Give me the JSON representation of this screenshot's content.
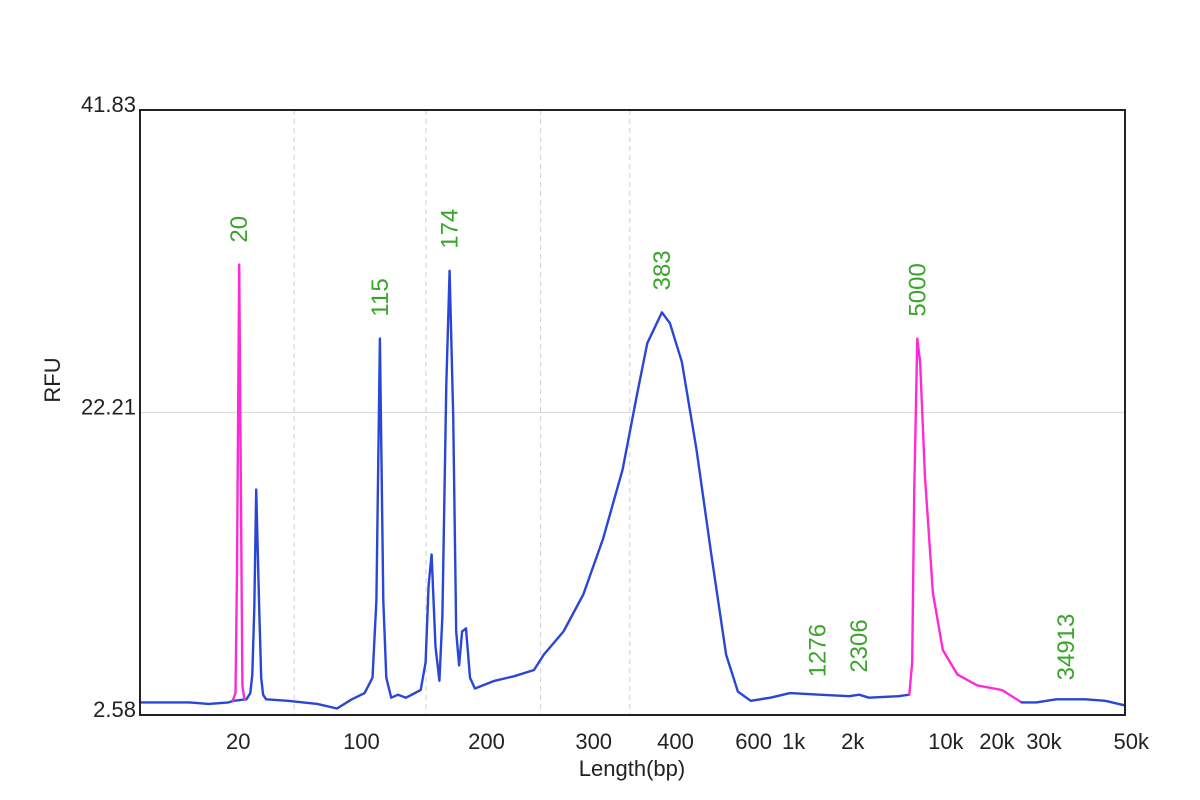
{
  "chart_data": {
    "type": "line",
    "title": "",
    "xlabel": "Length(bp)",
    "ylabel": "RFU",
    "ylim": [
      2.58,
      41.83
    ],
    "yticks": [
      "41.83",
      "22.21",
      "2.58"
    ],
    "x_scale": "piecewise sizing ladder",
    "x_ticks": [
      {
        "label": "20",
        "position": 0.0997
      },
      {
        "label": "100",
        "position": 0.2248
      },
      {
        "label": "200",
        "position": 0.3518
      },
      {
        "label": "300",
        "position": 0.4606
      },
      {
        "label": "400",
        "position": 0.5437
      },
      {
        "label": "600",
        "position": 0.623
      },
      {
        "label": "1k",
        "position": 0.6636
      },
      {
        "label": "2k",
        "position": 0.7236
      },
      {
        "label": "10k",
        "position": 0.8181
      },
      {
        "label": "20k",
        "position": 0.87
      },
      {
        "label": "30k",
        "position": 0.9177
      },
      {
        "label": "50k",
        "position": 1.0
      }
    ],
    "x_gridlines": [
      0.1566,
      0.2904,
      0.4067,
      0.4972
    ],
    "y_gridlines": [
      22.21
    ],
    "peaks": [
      {
        "label": "20",
        "position": 0.1007,
        "rfu": 31.8,
        "marker": true
      },
      {
        "label": "115",
        "position": 0.2436,
        "rfu": 27.0
      },
      {
        "label": "174",
        "position": 0.3143,
        "rfu": 31.4
      },
      {
        "label": "383",
        "position": 0.5298,
        "rfu": 28.7
      },
      {
        "label": "1276",
        "position": 0.688,
        "rfu": 3.6
      },
      {
        "label": "2306",
        "position": 0.7302,
        "rfu": 3.9
      },
      {
        "label": "5000",
        "position": 0.7891,
        "rfu": 27.0,
        "marker": true
      },
      {
        "label": "34913",
        "position": 0.9401,
        "rfu": 3.4
      }
    ],
    "series": [
      {
        "name": "sample",
        "color": "#2a46d6",
        "points": [
          [
            0.0,
            3.4
          ],
          [
            0.05,
            3.4
          ],
          [
            0.07,
            3.3
          ],
          [
            0.09,
            3.4
          ],
          [
            0.095,
            3.5
          ],
          [
            0.108,
            3.6
          ],
          [
            0.112,
            4.0
          ],
          [
            0.114,
            5.2
          ],
          [
            0.116,
            9.5
          ],
          [
            0.118,
            17.2
          ],
          [
            0.121,
            9.5
          ],
          [
            0.123,
            5.0
          ],
          [
            0.125,
            3.9
          ],
          [
            0.128,
            3.6
          ],
          [
            0.15,
            3.5
          ],
          [
            0.18,
            3.3
          ],
          [
            0.2,
            3.0
          ],
          [
            0.215,
            3.6
          ],
          [
            0.228,
            4.0
          ],
          [
            0.236,
            5.0
          ],
          [
            0.24,
            10.0
          ],
          [
            0.2436,
            27.0
          ],
          [
            0.247,
            10.0
          ],
          [
            0.25,
            5.0
          ],
          [
            0.255,
            3.7
          ],
          [
            0.262,
            3.9
          ],
          [
            0.27,
            3.7
          ],
          [
            0.285,
            4.2
          ],
          [
            0.29,
            6.0
          ],
          [
            0.293,
            11.0
          ],
          [
            0.296,
            13.0
          ],
          [
            0.3,
            7.0
          ],
          [
            0.304,
            4.8
          ],
          [
            0.307,
            9.0
          ],
          [
            0.311,
            24.0
          ],
          [
            0.3143,
            31.4
          ],
          [
            0.318,
            22.0
          ],
          [
            0.321,
            8.0
          ],
          [
            0.324,
            5.8
          ],
          [
            0.327,
            8.0
          ],
          [
            0.331,
            8.2
          ],
          [
            0.335,
            5.0
          ],
          [
            0.34,
            4.3
          ],
          [
            0.36,
            4.8
          ],
          [
            0.38,
            5.1
          ],
          [
            0.4,
            5.5
          ],
          [
            0.41,
            6.5
          ],
          [
            0.43,
            8.0
          ],
          [
            0.45,
            10.4
          ],
          [
            0.47,
            14.0
          ],
          [
            0.49,
            18.5
          ],
          [
            0.505,
            23.5
          ],
          [
            0.515,
            26.7
          ],
          [
            0.5298,
            28.7
          ],
          [
            0.538,
            28.0
          ],
          [
            0.55,
            25.5
          ],
          [
            0.565,
            19.8
          ],
          [
            0.58,
            13.0
          ],
          [
            0.595,
            6.5
          ],
          [
            0.607,
            4.1
          ],
          [
            0.62,
            3.5
          ],
          [
            0.64,
            3.7
          ],
          [
            0.66,
            4.0
          ],
          [
            0.69,
            3.9
          ],
          [
            0.72,
            3.8
          ],
          [
            0.7302,
            3.9
          ],
          [
            0.74,
            3.7
          ],
          [
            0.77,
            3.8
          ],
          [
            0.781,
            3.9
          ]
        ]
      },
      {
        "name": "markers",
        "color": "#ff2ad4",
        "points": [
          [
            0.094,
            3.5
          ],
          [
            0.097,
            4.0
          ],
          [
            0.0985,
            12.0
          ],
          [
            0.1007,
            31.8
          ],
          [
            0.103,
            12.0
          ],
          [
            0.104,
            4.5
          ],
          [
            0.106,
            3.6
          ]
        ]
      },
      {
        "name": "markers-upper",
        "color": "#ff2ad4",
        "points": [
          [
            0.781,
            3.9
          ],
          [
            0.784,
            6.0
          ],
          [
            0.786,
            17.0
          ],
          [
            0.7891,
            27.0
          ],
          [
            0.792,
            25.5
          ],
          [
            0.797,
            18.0
          ],
          [
            0.805,
            10.5
          ],
          [
            0.815,
            6.8
          ],
          [
            0.83,
            5.2
          ],
          [
            0.85,
            4.5
          ],
          [
            0.875,
            4.2
          ],
          [
            0.895,
            3.4
          ]
        ]
      },
      {
        "name": "sample-tail",
        "color": "#2a46d6",
        "points": [
          [
            0.895,
            3.4
          ],
          [
            0.91,
            3.4
          ],
          [
            0.93,
            3.6
          ],
          [
            0.96,
            3.6
          ],
          [
            0.98,
            3.5
          ],
          [
            1.0,
            3.2
          ]
        ]
      }
    ]
  }
}
